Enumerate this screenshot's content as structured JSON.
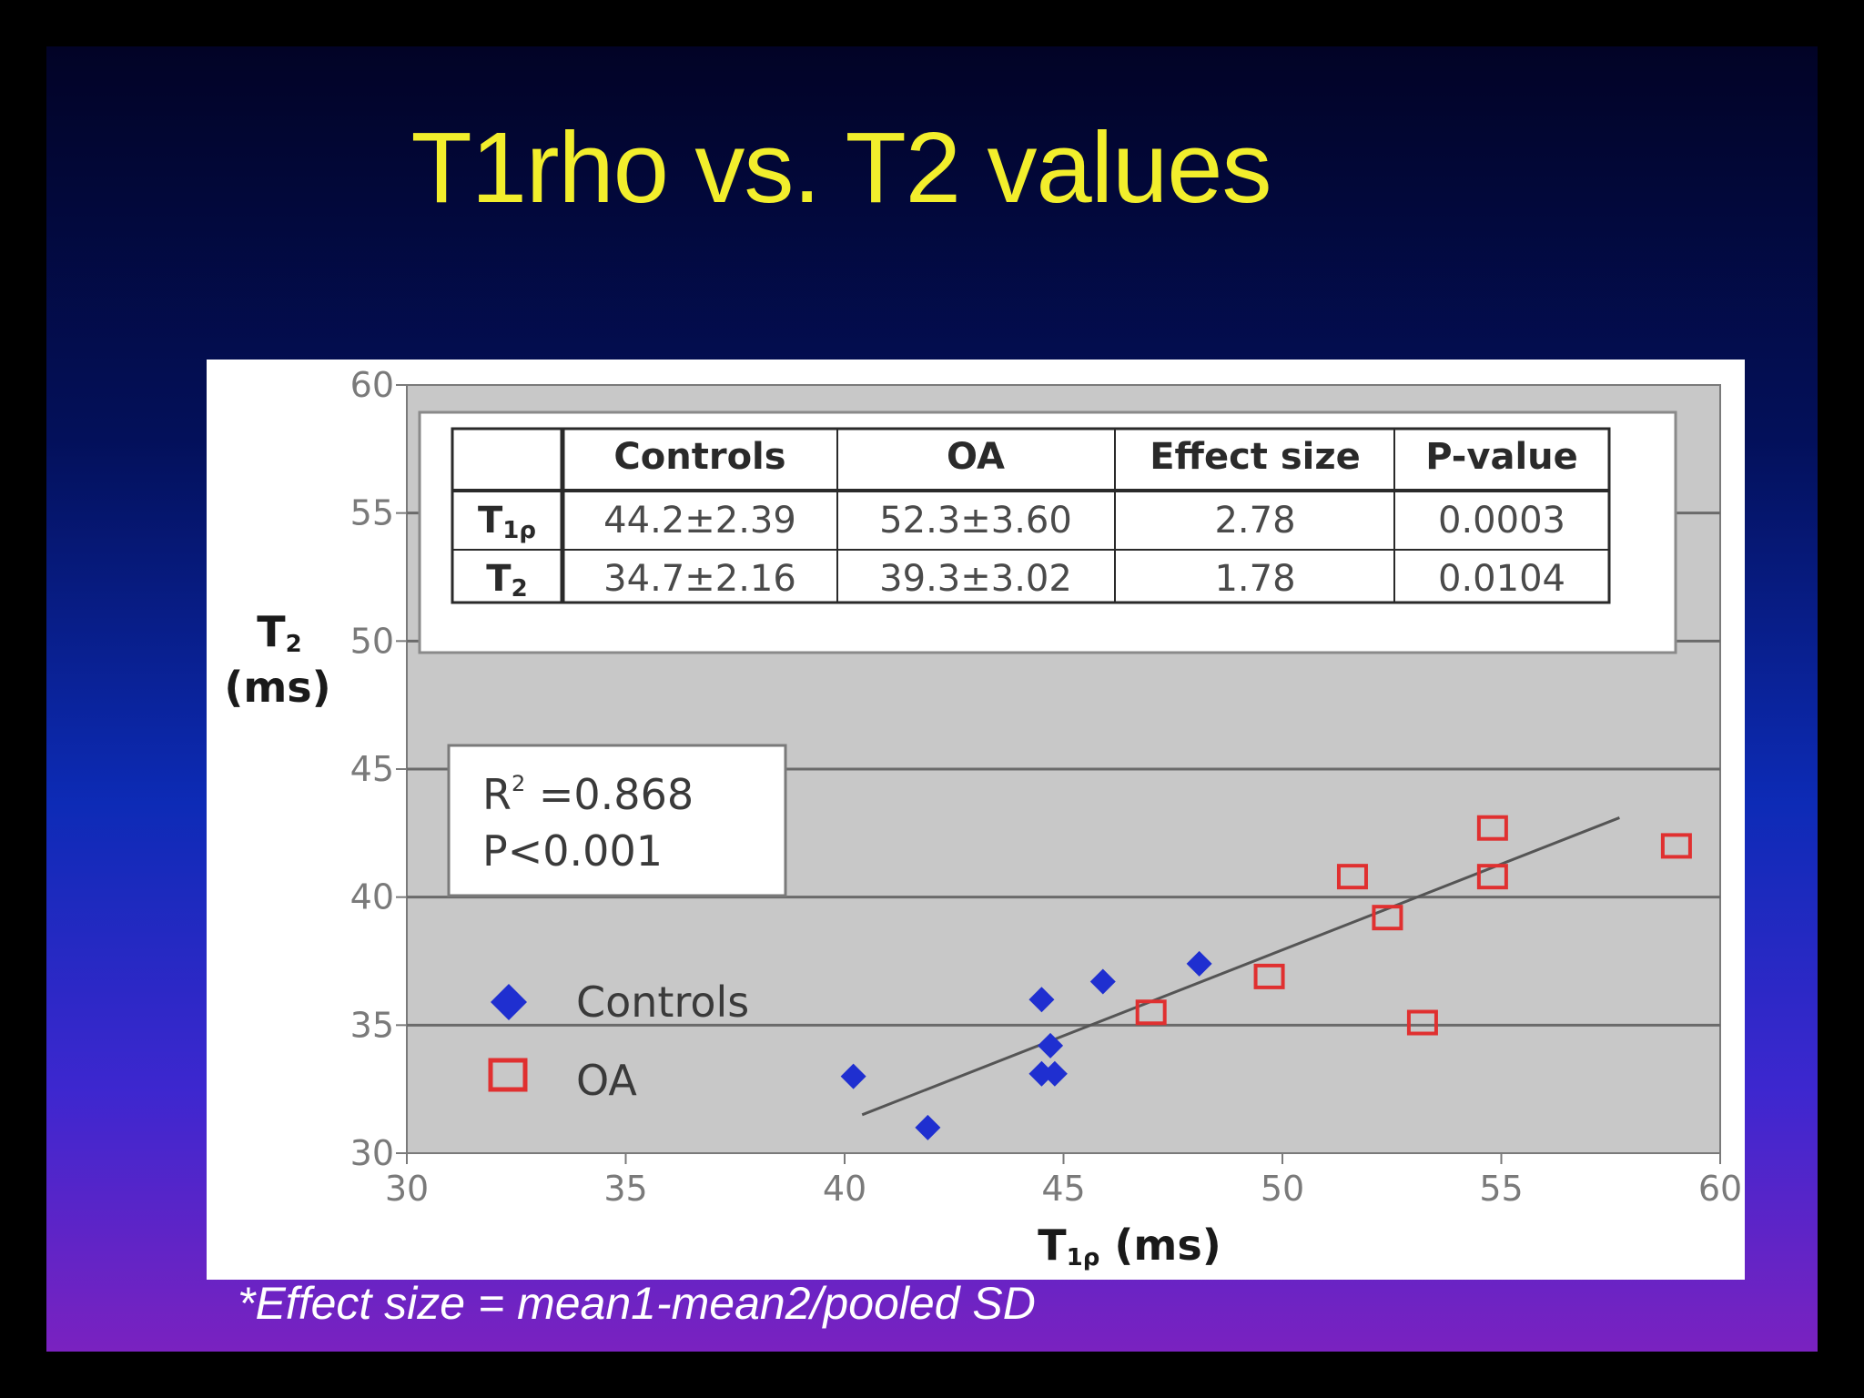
{
  "slide": {
    "title": "T1rho vs. T2 values",
    "footnote": "*Effect size = mean1-mean2/pooled SD"
  },
  "chart_data": {
    "type": "scatter",
    "title": "",
    "xlabel": {
      "main": "T",
      "sub": "1ρ",
      "unit": " (ms)"
    },
    "ylabel": {
      "main": "T",
      "sub": "2",
      "unit": "(ms)"
    },
    "xlim": [
      30,
      60
    ],
    "ylim": [
      30,
      60
    ],
    "x_ticks": [
      30,
      35,
      40,
      45,
      50,
      55,
      60
    ],
    "y_ticks": [
      30,
      35,
      40,
      45,
      50,
      55,
      60
    ],
    "grid": "horizontal",
    "legend": {
      "position": "left-middle",
      "entries": [
        "Controls",
        "OA"
      ]
    },
    "series": [
      {
        "name": "Controls",
        "marker": "diamond",
        "color": "#1f2fd0",
        "points": [
          [
            40.2,
            33.0
          ],
          [
            41.9,
            31.0
          ],
          [
            44.5,
            36.0
          ],
          [
            44.5,
            33.1
          ],
          [
            44.8,
            33.1
          ],
          [
            44.7,
            34.2
          ],
          [
            45.9,
            36.7
          ],
          [
            48.1,
            37.4
          ]
        ]
      },
      {
        "name": "OA",
        "marker": "square-open",
        "color": "#e03030",
        "points": [
          [
            47.0,
            35.5
          ],
          [
            49.7,
            36.9
          ],
          [
            51.6,
            40.8
          ],
          [
            52.4,
            39.2
          ],
          [
            53.2,
            35.1
          ],
          [
            54.8,
            42.7
          ],
          [
            54.8,
            40.8
          ],
          [
            59.0,
            42.0
          ]
        ]
      }
    ],
    "trendline": {
      "x": [
        40.4,
        57.7
      ],
      "y": [
        31.5,
        43.1
      ],
      "color": "#555555"
    },
    "stats_box": {
      "line1_main": "R",
      "line1_sup": "2",
      "line1_rest": " =0.868",
      "line2": "P<0.001"
    },
    "table": {
      "headers": [
        "",
        "Controls",
        "OA",
        "Effect size",
        "P-value"
      ],
      "rows": [
        {
          "label_main": "T",
          "label_sub": "1ρ",
          "cells": [
            "44.2±2.39",
            "52.3±3.60",
            "2.78",
            "0.0003"
          ]
        },
        {
          "label_main": "T",
          "label_sub": "2",
          "cells": [
            "34.7±2.16",
            "39.3±3.02",
            "1.78",
            "0.0104"
          ]
        }
      ]
    }
  }
}
